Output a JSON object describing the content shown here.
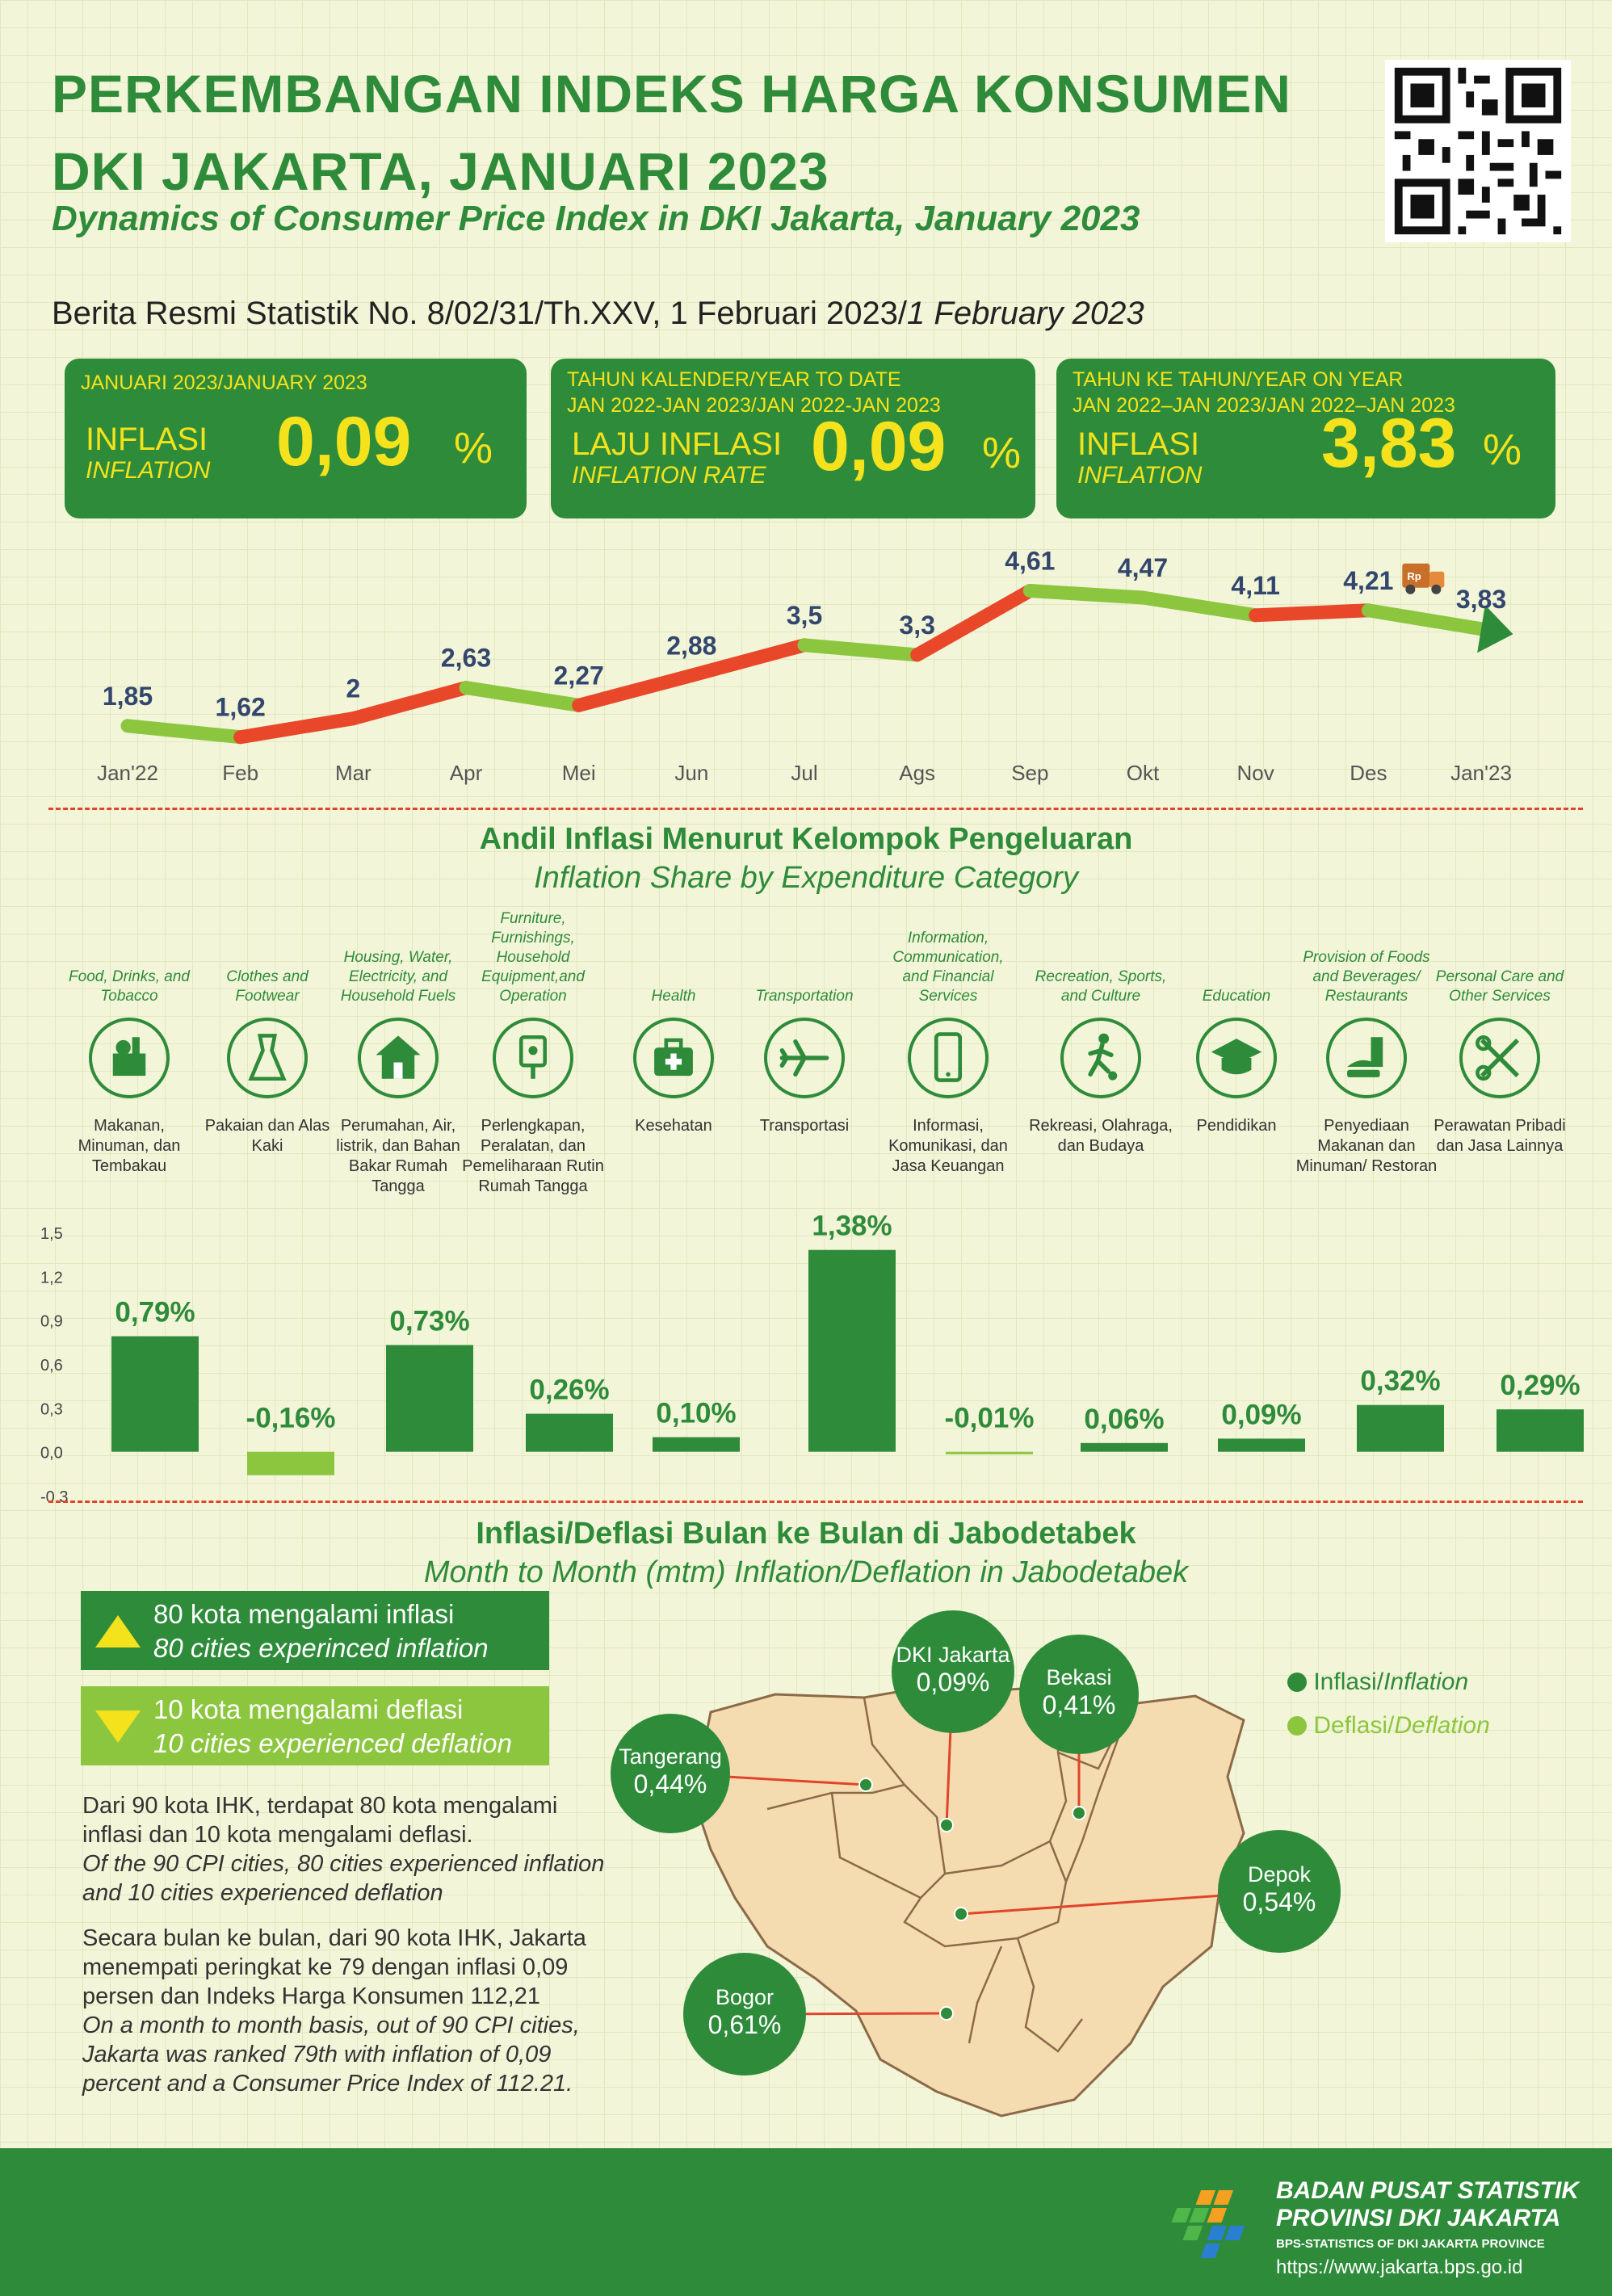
{
  "header": {
    "title_line1": "PERKEMBANGAN INDEKS HARGA KONSUMEN",
    "title_line2": "DKI JAKARTA, JANUARI 2023",
    "subtitle": "Dynamics of Consumer Price Index in DKI Jakarta, January 2023",
    "brs_main": "Berita Resmi Statistik No. 8/02/31/Th.XXV, 1 Februari 2023/",
    "brs_italic": "1 February 2023"
  },
  "cards": [
    {
      "header1": "JANUARI 2023/JANUARY 2023",
      "header2": "",
      "label_id": "INFLASI",
      "label_en": "INFLATION",
      "value": "0,09",
      "unit": "%"
    },
    {
      "header1": "TAHUN KALENDER/YEAR TO DATE",
      "header2": "JAN 2022-JAN 2023/JAN 2022-JAN 2023",
      "label_id": "LAJU INFLASI",
      "label_en": "INFLATION RATE",
      "value": "0,09",
      "unit": "%"
    },
    {
      "header1": "TAHUN KE TAHUN/YEAR ON YEAR",
      "header2": "JAN 2022–JAN 2023/JAN 2022–JAN 2023",
      "label_id": "INFLASI",
      "label_en": "INFLATION",
      "value": "3,83",
      "unit": "%"
    }
  ],
  "chart_data": [
    {
      "type": "line",
      "title": "",
      "categories": [
        "Jan'22",
        "Feb",
        "Mar",
        "Apr",
        "Mei",
        "Jun",
        "Jul",
        "Ags",
        "Sep",
        "Okt",
        "Nov",
        "Des",
        "Jan'23"
      ],
      "values": [
        1.85,
        1.62,
        2,
        2.63,
        2.27,
        2.88,
        3.5,
        3.3,
        4.61,
        4.47,
        4.11,
        4.21,
        3.83
      ],
      "labels": [
        "1,85",
        "1,62",
        "2",
        "2,63",
        "2,27",
        "2,88",
        "3,5",
        "3,3",
        "4,61",
        "4,47",
        "4,11",
        "4,21",
        "3,83"
      ],
      "colors": {
        "up": "#e8472a",
        "down_flat": "#8cc63f"
      }
    },
    {
      "type": "bar",
      "title": "Andil Inflasi Menurut Kelompok Pengeluaran",
      "subtitle": "Inflation Share by Expenditure Category",
      "categories": [
        "Makanan, Minuman, dan Tembakau",
        "Pakaian dan Alas Kaki",
        "Perumahan, Air, listrik, dan Bahan Bakar Rumah Tangga",
        "Perlengkapan, Peralatan, dan Pemeliharaan Rutin Rumah Tangga",
        "Kesehatan",
        "Transportasi",
        "Informasi, Komunikasi, dan Jasa Keuangan",
        "Rekreasi, Olahraga, dan Budaya",
        "Pendidikan",
        "Penyediaan Makanan dan Minuman/ Restoran",
        "Perawatan Pribadi dan Jasa Lainnya"
      ],
      "values": [
        0.79,
        -0.16,
        0.73,
        0.26,
        0.1,
        1.38,
        -0.01,
        0.06,
        0.09,
        0.32,
        0.29
      ],
      "labels": [
        "0,79%",
        "-0,16%",
        "0,73%",
        "0,26%",
        "0,10%",
        "1,38%",
        "-0,01%",
        "0,06%",
        "0,09%",
        "0,32%",
        "0,29%"
      ],
      "ylim": [
        -0.3,
        1.5
      ],
      "yticks": [
        "1,5",
        "1,2",
        "0,9",
        "0,6",
        "0,3",
        "0,0",
        "-0,3"
      ],
      "colors": {
        "positive": "#2e8b3a",
        "negative": "#8cc63f"
      }
    }
  ],
  "categories_section": {
    "title": "Andil Inflasi Menurut Kelompok Pengeluaran",
    "subtitle": "Inflation Share by Expenditure Category",
    "items": [
      {
        "en": "Food, Drinks, and Tobacco",
        "id": "Makanan, Minuman, dan Tembakau",
        "icon": "grocery-basket-icon"
      },
      {
        "en": "Clothes and Footwear",
        "id": "Pakaian dan Alas Kaki",
        "icon": "dress-icon"
      },
      {
        "en": "Housing, Water, Electricity, and Household Fuels",
        "id": "Perumahan, Air, listrik, dan Bahan Bakar Rumah Tangga",
        "icon": "house-icon"
      },
      {
        "en": "Furniture, Furnishings, Household Equipment,and Operation",
        "id": "Perlengkapan, Peralatan, dan Pemeliharaan Rutin Rumah Tangga",
        "icon": "plug-icon"
      },
      {
        "en": "Health",
        "id": "Kesehatan",
        "icon": "medical-bag-icon"
      },
      {
        "en": "Transportation",
        "id": "Transportasi",
        "icon": "airplane-icon"
      },
      {
        "en": "Information, Communication, and Financial Services",
        "id": "Informasi, Komunikasi, dan Jasa Keuangan",
        "icon": "smartphone-icon"
      },
      {
        "en": "Recreation, Sports, and Culture",
        "id": "Rekreasi, Olahraga, dan Budaya",
        "icon": "soccer-player-icon"
      },
      {
        "en": "Education",
        "id": "Pendidikan",
        "icon": "graduation-cap-icon"
      },
      {
        "en": "Provision of Foods and Beverages/ Restaurants",
        "id": "Penyediaan Makanan dan Minuman/ Restoran",
        "icon": "burger-drink-icon"
      },
      {
        "en": "Personal Care and Other Services",
        "id": "Perawatan Pribadi dan Jasa Lainnya",
        "icon": "scissors-comb-icon"
      }
    ]
  },
  "jabodetabek": {
    "title": "Inflasi/Deflasi Bulan ke Bulan di Jabodetabek",
    "subtitle": "Month to Month (mtm) Inflation/Deflation in Jabodetabek",
    "inflation_box": {
      "line1": "80 kota mengalami inflasi",
      "line2": "80 cities experinced inflation"
    },
    "deflation_box": {
      "line1": "10 kota mengalami deflasi",
      "line2": "10 cities experienced deflation"
    },
    "para1": {
      "id_1": "Dari 90 kota IHK, terdapat 80 kota mengalami",
      "id_2": "inflasi dan 10 kota mengalami deflasi.",
      "en_1": "Of the 90 CPI cities, 80 cities experienced inflation",
      "en_2": "and 10 cities experienced deflation"
    },
    "para2": {
      "id_1": "Secara bulan ke bulan, dari 90 kota IHK, Jakarta",
      "id_2": "menempati peringkat ke 79 dengan inflasi 0,09",
      "id_3": "persen dan Indeks Harga Konsumen 112,21",
      "en_1": "On a month to month basis, out of 90 CPI cities,",
      "en_2": "Jakarta was ranked 79th with inflation of 0,09",
      "en_3": "percent and a Consumer Price Index of 112.21."
    },
    "legend": {
      "inflation": "Inflasi/",
      "inflation_en": "Inflation",
      "deflation": "Deflasi/",
      "deflation_en": "Deflation",
      "inflation_color": "#2e8b3a",
      "deflation_color": "#8cc63f"
    },
    "cities": [
      {
        "name": "DKI Jakarta",
        "value": "0,09%"
      },
      {
        "name": "Bekasi",
        "value": "0,41%"
      },
      {
        "name": "Tangerang",
        "value": "0,44%"
      },
      {
        "name": "Depok",
        "value": "0,54%"
      },
      {
        "name": "Bogor",
        "value": "0,61%"
      }
    ]
  },
  "footer": {
    "org1": "BADAN PUSAT STATISTIK",
    "org2": "PROVINSI DKI JAKARTA",
    "org_en": "BPS-STATISTICS OF DKI JAKARTA PROVINCE",
    "url": "https://www.jakarta.bps.go.id"
  }
}
